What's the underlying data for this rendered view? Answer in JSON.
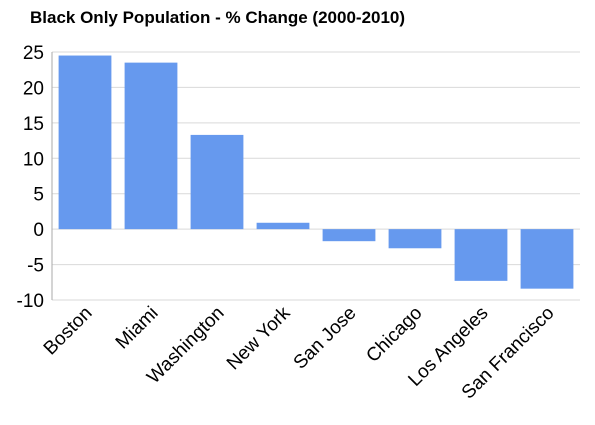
{
  "chart_data": {
    "type": "bar",
    "title": "Black Only Population - % Change (2000-2010)",
    "categories": [
      "Boston",
      "Miami",
      "Washington",
      "New York",
      "San Jose",
      "Chicago",
      "Los Angeles",
      "San Francisco"
    ],
    "values": [
      24.5,
      23.5,
      13.3,
      0.9,
      -1.7,
      -2.7,
      -7.3,
      -8.4
    ],
    "ylim": [
      -10,
      25
    ],
    "yticks": [
      25,
      20,
      15,
      10,
      5,
      0,
      -5,
      -10
    ],
    "grid": true,
    "bar_color": "#6699ee",
    "grid_color": "#d9d9d9",
    "axis_color": "#aaaaaa",
    "xlabel": "",
    "ylabel": ""
  }
}
